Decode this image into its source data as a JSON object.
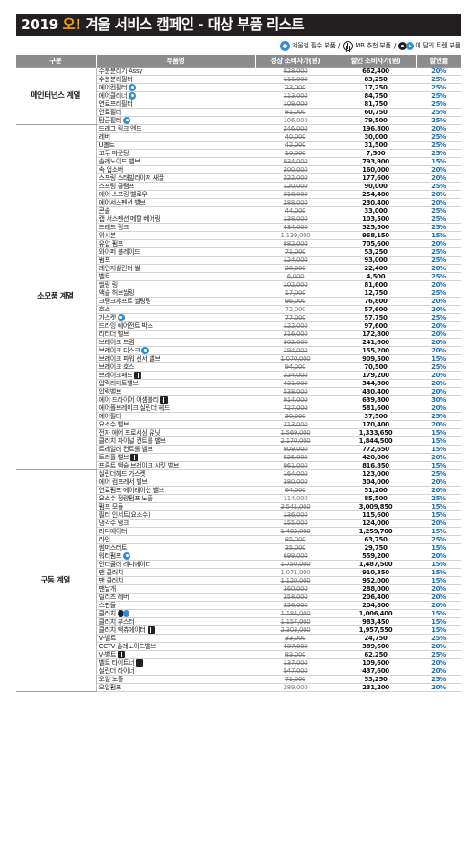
{
  "title": {
    "year": "2019",
    "oh": "오!",
    "text": "겨울 서비스 캠페인 - 대상 부품 리스트"
  },
  "legend": {
    "winter": "겨울철 필수 부품",
    "mb": "MB 추천 부품",
    "onetone": "이 달의 트렌 부품",
    "separator": "/"
  },
  "table": {
    "headers": [
      "구분",
      "부품명",
      "정상 소비자가(원)",
      "할인 소비자가(원)",
      "할인율"
    ],
    "groups": [
      {
        "category": "메인터넌스 계열",
        "rows": [
          {
            "name": "수분분리기 Assy",
            "badge": "",
            "regular": "828,000",
            "sale": "662,400",
            "rate": "20%"
          },
          {
            "name": "수분분리필터",
            "badge": "",
            "regular": "111,000",
            "sale": "83,250",
            "rate": "25%"
          },
          {
            "name": "에어컨필터",
            "badge": "winter",
            "regular": "23,000",
            "sale": "17,250",
            "rate": "25%"
          },
          {
            "name": "에어클리너",
            "badge": "winter",
            "regular": "113,000",
            "sale": "84,750",
            "rate": "25%"
          },
          {
            "name": "연료프리필터",
            "badge": "",
            "regular": "109,000",
            "sale": "81,750",
            "rate": "25%"
          },
          {
            "name": "연료필터",
            "badge": "",
            "regular": "81,000",
            "sale": "60,750",
            "rate": "25%"
          },
          {
            "name": "탐금필터",
            "badge": "winter",
            "regular": "106,000",
            "sale": "79,500",
            "rate": "25%"
          }
        ]
      },
      {
        "category": "소모품 계열",
        "rows": [
          {
            "name": "드래그 링크 엔드",
            "badge": "",
            "regular": "246,000",
            "sale": "196,800",
            "rate": "20%"
          },
          {
            "name": "레버",
            "badge": "",
            "regular": "40,000",
            "sale": "30,000",
            "rate": "25%"
          },
          {
            "name": "U볼트",
            "badge": "",
            "regular": "42,000",
            "sale": "31,500",
            "rate": "25%"
          },
          {
            "name": "고무 마운팅",
            "badge": "",
            "regular": "10,000",
            "sale": "7,500",
            "rate": "25%"
          },
          {
            "name": "솔레노이드 밸브",
            "badge": "",
            "regular": "934,000",
            "sale": "793,900",
            "rate": "15%"
          },
          {
            "name": "속 업소버",
            "badge": "",
            "regular": "200,000",
            "sale": "160,000",
            "rate": "20%"
          },
          {
            "name": "스프링 스태빌라이저 새끌",
            "badge": "",
            "regular": "222,000",
            "sale": "177,600",
            "rate": "20%"
          },
          {
            "name": "스프링 클램프",
            "badge": "",
            "regular": "120,000",
            "sale": "90,000",
            "rate": "25%"
          },
          {
            "name": "에어 스프링 벨로우",
            "badge": "",
            "regular": "318,000",
            "sale": "254,400",
            "rate": "20%"
          },
          {
            "name": "에어서스펜션 밸브",
            "badge": "",
            "regular": "288,000",
            "sale": "230,400",
            "rate": "20%"
          },
          {
            "name": "콘솔",
            "badge": "",
            "regular": "44,000",
            "sale": "33,000",
            "rate": "25%"
          },
          {
            "name": "캡 서스펜션 메탈 베어링",
            "badge": "",
            "regular": "138,000",
            "sale": "103,500",
            "rate": "25%"
          },
          {
            "name": "드래드 링크",
            "badge": "",
            "regular": "434,000",
            "sale": "325,500",
            "rate": "25%"
          },
          {
            "name": "위시본",
            "badge": "",
            "regular": "1,139,000",
            "sale": "968,150",
            "rate": "15%"
          },
          {
            "name": "유압 펌프",
            "badge": "",
            "regular": "882,000",
            "sale": "705,600",
            "rate": "20%"
          },
          {
            "name": "와이퍼 블레이드",
            "badge": "",
            "regular": "71,000",
            "sale": "53,250",
            "rate": "25%"
          },
          {
            "name": "펌프",
            "badge": "",
            "regular": "124,000",
            "sale": "93,000",
            "rate": "25%"
          },
          {
            "name": "레인지실린더 씰",
            "badge": "",
            "regular": "28,000",
            "sale": "22,400",
            "rate": "20%"
          },
          {
            "name": "벨트",
            "badge": "",
            "regular": "6,000",
            "sale": "4,500",
            "rate": "25%"
          },
          {
            "name": "씰링 링",
            "badge": "",
            "regular": "102,000",
            "sale": "81,600",
            "rate": "20%"
          },
          {
            "name": "액슬 허브씰링",
            "badge": "",
            "regular": "17,000",
            "sale": "12,750",
            "rate": "25%"
          },
          {
            "name": "크랭크샤프트 씰링링",
            "badge": "",
            "regular": "96,000",
            "sale": "76,800",
            "rate": "20%"
          },
          {
            "name": "호스",
            "badge": "",
            "regular": "72,000",
            "sale": "57,600",
            "rate": "20%"
          },
          {
            "name": "가스켓",
            "badge": "winter",
            "regular": "77,000",
            "sale": "57,750",
            "rate": "25%"
          },
          {
            "name": "드라잉 에어전트 박스",
            "badge": "",
            "regular": "122,000",
            "sale": "97,600",
            "rate": "20%"
          },
          {
            "name": "리터더 밸브",
            "badge": "",
            "regular": "216,000",
            "sale": "172,800",
            "rate": "20%"
          },
          {
            "name": "브레이크 드럼",
            "badge": "",
            "regular": "302,000",
            "sale": "241,600",
            "rate": "20%"
          },
          {
            "name": "브레이크 디스크",
            "badge": "winter",
            "regular": "194,000",
            "sale": "155,200",
            "rate": "20%"
          },
          {
            "name": "브레이크 파워 센서 밸브",
            "badge": "",
            "regular": "1,070,000",
            "sale": "909,500",
            "rate": "15%"
          },
          {
            "name": "브레이크 호스",
            "badge": "",
            "regular": "94,000",
            "sale": "70,500",
            "rate": "25%"
          },
          {
            "name": "브레이크패드",
            "badge": "mb",
            "regular": "224,000",
            "sale": "179,200",
            "rate": "20%"
          },
          {
            "name": "압력리미트밸브",
            "badge": "",
            "regular": "431,000",
            "sale": "344,800",
            "rate": "20%"
          },
          {
            "name": "압력밸브",
            "badge": "",
            "regular": "538,000",
            "sale": "430,400",
            "rate": "20%"
          },
          {
            "name": "에어 드라이어 어셈블리",
            "badge": "mb",
            "regular": "914,000",
            "sale": "639,800",
            "rate": "30%"
          },
          {
            "name": "에어폴브레이크 실린더 헤드",
            "badge": "",
            "regular": "727,000",
            "sale": "581,600",
            "rate": "20%"
          },
          {
            "name": "에어필터",
            "badge": "",
            "regular": "50,000",
            "sale": "37,500",
            "rate": "25%"
          },
          {
            "name": "요소수 밸브",
            "badge": "",
            "regular": "213,000",
            "sale": "170,400",
            "rate": "20%"
          },
          {
            "name": "전자 에어 프로세싱 유닛",
            "badge": "",
            "regular": "1,569,000",
            "sale": "1,333,650",
            "rate": "15%"
          },
          {
            "name": "클러치 파이널 컨트롤 밸브",
            "badge": "",
            "regular": "2,170,000",
            "sale": "1,844,500",
            "rate": "15%"
          },
          {
            "name": "트레일러 컨트롤 밸브",
            "badge": "",
            "regular": "909,000",
            "sale": "772,650",
            "rate": "15%"
          },
          {
            "name": "트리플 밸브",
            "badge": "mb",
            "regular": "525,000",
            "sale": "420,000",
            "rate": "20%"
          },
          {
            "name": "프론트 액슬 브레이크 시킷 밸브",
            "badge": "",
            "regular": "961,000",
            "sale": "816,850",
            "rate": "15%"
          }
        ]
      },
      {
        "category": "구동 계열",
        "rows": [
          {
            "name": "실린더헤드 가스켓",
            "badge": "",
            "regular": "164,000",
            "sale": "123,000",
            "rate": "25%"
          },
          {
            "name": "에어 컴프레서 밸브",
            "badge": "",
            "regular": "380,000",
            "sale": "304,000",
            "rate": "20%"
          },
          {
            "name": "연료펌프 에어레이션 밸브",
            "badge": "",
            "regular": "64,000",
            "sale": "51,200",
            "rate": "20%"
          },
          {
            "name": "요소수 정량펌프 노즐",
            "badge": "",
            "regular": "114,000",
            "sale": "85,500",
            "rate": "25%"
          },
          {
            "name": "펌프 모듈",
            "badge": "",
            "regular": "3,541,000",
            "sale": "3,009,850",
            "rate": "15%"
          },
          {
            "name": "필터 인서트(요소수)",
            "badge": "",
            "regular": "136,000",
            "sale": "115,600",
            "rate": "15%"
          },
          {
            "name": "냉각수 탱크",
            "badge": "",
            "regular": "155,000",
            "sale": "124,000",
            "rate": "20%"
          },
          {
            "name": "라디에이터",
            "badge": "",
            "regular": "1,482,000",
            "sale": "1,259,700",
            "rate": "15%"
          },
          {
            "name": "라인",
            "badge": "",
            "regular": "85,000",
            "sale": "63,750",
            "rate": "25%"
          },
          {
            "name": "썸머스터트",
            "badge": "",
            "regular": "35,000",
            "sale": "29,750",
            "rate": "15%"
          },
          {
            "name": "워터펌프",
            "badge": "winter",
            "regular": "699,000",
            "sale": "559,200",
            "rate": "20%"
          },
          {
            "name": "인터쿨러 레디에이터",
            "badge": "",
            "regular": "1,750,000",
            "sale": "1,487,500",
            "rate": "15%"
          },
          {
            "name": "팬 클러치",
            "badge": "",
            "regular": "1,071,000",
            "sale": "910,350",
            "rate": "15%"
          },
          {
            "name": "팬 클러치",
            "badge": "",
            "regular": "1,120,000",
            "sale": "952,000",
            "rate": "15%"
          },
          {
            "name": "팬날개",
            "badge": "",
            "regular": "360,000",
            "sale": "288,000",
            "rate": "20%"
          },
          {
            "name": "릴리즈 레버",
            "badge": "",
            "regular": "258,000",
            "sale": "206,400",
            "rate": "20%"
          },
          {
            "name": "스핀들",
            "badge": "",
            "regular": "256,000",
            "sale": "204,800",
            "rate": "20%"
          },
          {
            "name": "클러치",
            "badge": "eyes",
            "regular": "1,184,000",
            "sale": "1,006,400",
            "rate": "15%"
          },
          {
            "name": "클러치 부스터",
            "badge": "",
            "regular": "1,157,000",
            "sale": "983,450",
            "rate": "15%"
          },
          {
            "name": "클러치 액츄에이터",
            "badge": "mb",
            "regular": "2,303,000",
            "sale": "1,957,550",
            "rate": "15%"
          },
          {
            "name": "V-벨트",
            "badge": "",
            "regular": "33,000",
            "sale": "24,750",
            "rate": "25%"
          },
          {
            "name": "CCTV 솔레노이드밸브",
            "badge": "",
            "regular": "487,000",
            "sale": "389,600",
            "rate": "20%"
          },
          {
            "name": "V-벨트",
            "badge": "mb",
            "regular": "83,000",
            "sale": "62,250",
            "rate": "25%"
          },
          {
            "name": "벨트 타이트너",
            "badge": "mb",
            "regular": "137,000",
            "sale": "109,600",
            "rate": "20%"
          },
          {
            "name": "실린더 라이너",
            "badge": "",
            "regular": "547,000",
            "sale": "437,600",
            "rate": "20%"
          },
          {
            "name": "오일 노즐",
            "badge": "",
            "regular": "71,000",
            "sale": "53,250",
            "rate": "25%"
          },
          {
            "name": "오일펌프",
            "badge": "",
            "regular": "289,000",
            "sale": "231,200",
            "rate": "20%"
          }
        ]
      }
    ]
  }
}
